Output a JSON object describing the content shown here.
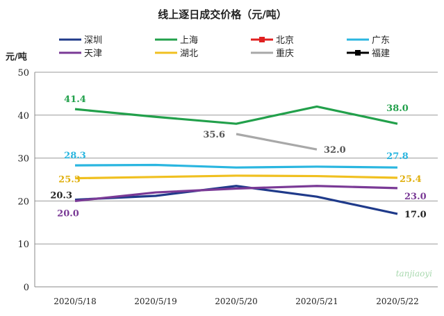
{
  "chart_data": {
    "type": "line",
    "title": "线上逐日成交价格（元/吨）",
    "ylabel": "元/吨",
    "xlabel": "",
    "ylim": [
      0,
      50
    ],
    "yticks": [
      0,
      10,
      20,
      30,
      40,
      50
    ],
    "grid": true,
    "legend_placement": "top",
    "categories": [
      "2020/5/18",
      "2020/5/19",
      "2020/5/20",
      "2020/5/21",
      "2020/5/22"
    ],
    "series": [
      {
        "name": "深圳",
        "color": "#1f3a8a",
        "values": [
          20.3,
          21.2,
          23.5,
          21.0,
          17.0
        ],
        "labels": {
          "0": "20.3",
          "4": "17.0"
        },
        "label_color": "#222222"
      },
      {
        "name": "上海",
        "color": "#22a04b",
        "values": [
          41.4,
          39.6,
          38.0,
          42.0,
          38.0
        ],
        "labels": {
          "0": "41.4",
          "4": "38.0"
        },
        "label_color": "#22a04b"
      },
      {
        "name": "北京",
        "color": "#e02020",
        "values": [
          null,
          null,
          null,
          null,
          null
        ],
        "marker": "square"
      },
      {
        "name": "广东",
        "color": "#2ab6e0",
        "values": [
          28.3,
          28.4,
          27.8,
          28.0,
          27.8
        ],
        "labels": {
          "0": "28.3",
          "4": "27.8"
        },
        "label_color": "#2ab6e0"
      },
      {
        "name": "天津",
        "color": "#7a3a96",
        "values": [
          20.0,
          22.0,
          22.9,
          23.5,
          23.0
        ],
        "labels": {
          "0": "20.0",
          "4": "23.0"
        },
        "label_color": "#7a3a96"
      },
      {
        "name": "湖北",
        "color": "#f0c020",
        "values": [
          25.3,
          25.6,
          25.9,
          25.8,
          25.4
        ],
        "labels": {
          "0": "25.3",
          "4": "25.4"
        },
        "label_color": "#e0b010"
      },
      {
        "name": "重庆",
        "color": "#a8a8a8",
        "values": [
          null,
          null,
          35.6,
          32.0,
          null
        ],
        "labels": {
          "2": "35.6",
          "3": "32.0"
        },
        "label_color": "#555555"
      },
      {
        "name": "福建",
        "color": "#000000",
        "values": [
          null,
          null,
          null,
          null,
          null
        ],
        "marker": "square"
      }
    ]
  },
  "watermark": "tanjiaoyi"
}
